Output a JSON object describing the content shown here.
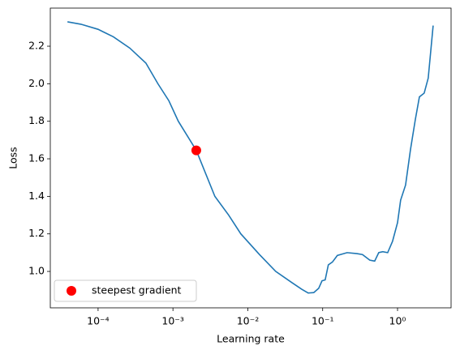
{
  "chart_data": {
    "type": "line",
    "xlabel": "Learning rate",
    "ylabel": "Loss",
    "xscale": "log",
    "color": "#1f77b4",
    "x": [
      3.9e-05,
      5.9e-05,
      0.0001,
      0.00016,
      0.000265,
      0.000435,
      0.00063,
      0.00088,
      0.00118,
      0.00205,
      0.00363,
      0.00555,
      0.00807,
      0.0143,
      0.0236,
      0.0389,
      0.0525,
      0.064,
      0.076,
      0.0885,
      0.098,
      0.108,
      0.119,
      0.135,
      0.157,
      0.212,
      0.286,
      0.34,
      0.426,
      0.495,
      0.561,
      0.635,
      0.738,
      0.857,
      1.0,
      1.1,
      1.28,
      1.49,
      1.73,
      1.96,
      2.27,
      2.57,
      2.99
    ],
    "values": [
      2.33,
      2.317,
      2.29,
      2.25,
      2.19,
      2.11,
      2.0,
      1.91,
      1.8,
      1.645,
      1.4,
      1.3,
      1.2,
      1.09,
      1.0,
      0.94,
      0.905,
      0.885,
      0.887,
      0.91,
      0.95,
      0.955,
      1.035,
      1.05,
      1.085,
      1.1,
      1.095,
      1.09,
      1.06,
      1.055,
      1.1,
      1.105,
      1.1,
      1.16,
      1.26,
      1.38,
      1.46,
      1.65,
      1.81,
      1.93,
      1.95,
      2.03,
      2.31
    ],
    "scatter": {
      "name": "steepest gradient",
      "x": [
        0.00205
      ],
      "values": [
        1.645
      ],
      "color": "red"
    },
    "legend": "lower left",
    "xlim": [
      2.3e-05,
      5.19
    ],
    "ylim": [
      0.806,
      2.403
    ],
    "xticks": [
      {
        "value": 0.0001,
        "label": "10⁻⁴"
      },
      {
        "value": 0.001,
        "label": "10⁻³"
      },
      {
        "value": 0.01,
        "label": "10⁻²"
      },
      {
        "value": 0.1,
        "label": "10⁻¹"
      },
      {
        "value": 1,
        "label": "10⁰"
      }
    ],
    "yticks": [
      {
        "value": 1,
        "label": "1.0"
      },
      1.2,
      1.4,
      1.6,
      1.8,
      {
        "value": 2,
        "label": "2.0"
      },
      2.2
    ]
  }
}
